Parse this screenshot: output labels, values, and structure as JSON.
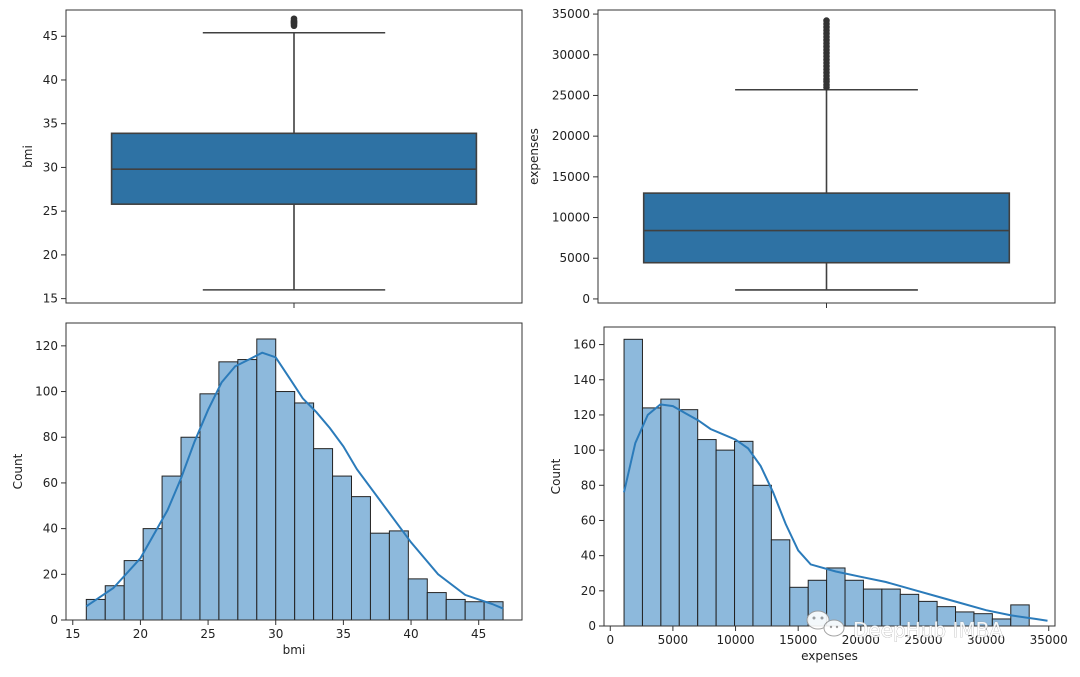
{
  "watermark": {
    "text": "DeepHub IMBA",
    "icon": "wechat-icon"
  },
  "colors": {
    "box_fill": "#2e72a4",
    "box_line": "#404040",
    "hist_fill": "#8db9dc",
    "hist_edge": "#222222",
    "kde": "#2b7bba",
    "frame": "#333333"
  },
  "chart_data": [
    {
      "type": "box",
      "id": "bmi-box",
      "ylabel": "bmi",
      "ylim": [
        14.5,
        48
      ],
      "yticks": [
        15,
        20,
        25,
        30,
        35,
        40,
        45
      ],
      "whisker_low": 16.0,
      "q1": 25.8,
      "median": 29.8,
      "q3": 33.9,
      "whisker_high": 45.4,
      "outliers": [
        46.2,
        46.4,
        46.5,
        46.6,
        46.7,
        46.8,
        47.0
      ]
    },
    {
      "type": "box",
      "id": "expenses-box",
      "ylabel": "expenses",
      "ylim": [
        -500,
        35500
      ],
      "yticks": [
        0,
        5000,
        10000,
        15000,
        20000,
        25000,
        30000,
        35000
      ],
      "whisker_low": 1100,
      "q1": 4450,
      "median": 8400,
      "q3": 13000,
      "whisker_high": 25700,
      "outliers": [
        26000,
        26300,
        26700,
        27000,
        27400,
        27800,
        28200,
        28600,
        29000,
        29400,
        29800,
        30200,
        30600,
        31000,
        31400,
        31800,
        32200,
        32600,
        33000,
        33400,
        33800,
        34200
      ]
    },
    {
      "type": "histogram",
      "id": "bmi-hist",
      "xlabel": "bmi",
      "ylabel": "Count",
      "xlim": [
        14.5,
        48.2
      ],
      "ylim": [
        0,
        130
      ],
      "xticks": [
        15,
        20,
        25,
        30,
        35,
        40,
        45
      ],
      "yticks": [
        0,
        20,
        40,
        60,
        80,
        100,
        120
      ],
      "bin_start": 16.0,
      "bin_width": 1.4,
      "counts": [
        9,
        15,
        26,
        40,
        63,
        80,
        99,
        113,
        114,
        123,
        100,
        95,
        75,
        63,
        54,
        38,
        39,
        18,
        12,
        9,
        8,
        8
      ],
      "kde": [
        [
          16,
          6
        ],
        [
          18,
          14
        ],
        [
          20,
          27
        ],
        [
          22,
          48
        ],
        [
          23,
          62
        ],
        [
          24,
          78
        ],
        [
          25,
          92
        ],
        [
          26,
          104
        ],
        [
          27,
          111
        ],
        [
          28,
          114
        ],
        [
          29,
          117
        ],
        [
          30,
          115
        ],
        [
          31,
          106
        ],
        [
          32,
          97
        ],
        [
          33,
          91
        ],
        [
          34,
          84
        ],
        [
          35,
          76
        ],
        [
          36,
          66
        ],
        [
          38,
          50
        ],
        [
          40,
          34
        ],
        [
          42,
          20
        ],
        [
          44,
          11
        ],
        [
          46,
          7
        ],
        [
          46.8,
          5
        ]
      ]
    },
    {
      "type": "histogram",
      "id": "expenses-hist",
      "xlabel": "expenses",
      "ylabel": "Count",
      "xlim": [
        -500,
        35500
      ],
      "ylim": [
        0,
        170
      ],
      "xticks": [
        0,
        5000,
        10000,
        15000,
        20000,
        25000,
        30000,
        35000
      ],
      "yticks": [
        0,
        20,
        40,
        60,
        80,
        100,
        120,
        140,
        160
      ],
      "bin_start": 1100,
      "bin_width": 1470,
      "counts": [
        163,
        124,
        129,
        123,
        106,
        100,
        105,
        80,
        49,
        22,
        26,
        33,
        26,
        21,
        21,
        18,
        14,
        11,
        8,
        7,
        4,
        12
      ],
      "kde": [
        [
          1100,
          76
        ],
        [
          2000,
          104
        ],
        [
          3000,
          120
        ],
        [
          4000,
          126
        ],
        [
          5000,
          125
        ],
        [
          6000,
          121
        ],
        [
          7000,
          117
        ],
        [
          8000,
          112
        ],
        [
          9000,
          109
        ],
        [
          10000,
          106
        ],
        [
          11000,
          101
        ],
        [
          12000,
          91
        ],
        [
          13000,
          76
        ],
        [
          14000,
          58
        ],
        [
          15000,
          43
        ],
        [
          16000,
          35
        ],
        [
          18000,
          31
        ],
        [
          20000,
          28
        ],
        [
          22000,
          25
        ],
        [
          24000,
          21
        ],
        [
          26000,
          17
        ],
        [
          28000,
          13
        ],
        [
          30000,
          9
        ],
        [
          32000,
          6
        ],
        [
          34000,
          4
        ],
        [
          34900,
          3
        ]
      ]
    }
  ]
}
